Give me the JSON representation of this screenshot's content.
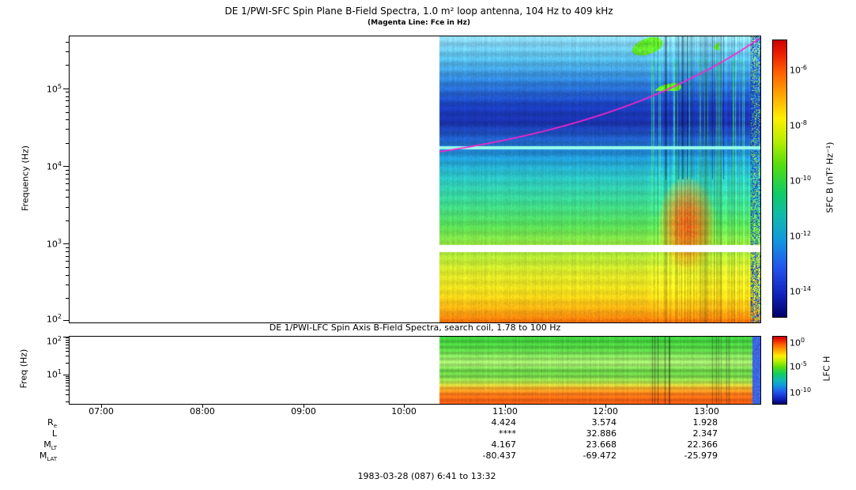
{
  "header": {
    "title": "DE 1/PWI-SFC  Spin Plane B-Field Spectra, 1.0 m² loop antenna, 104 Hz to 409 kHz",
    "subtitle": "(Magenta Line: Fce in Hz)"
  },
  "accent_colors": {
    "magenta_line": "#ff22cc",
    "cyan_line": "#96ffeb"
  },
  "sfc_panel": {
    "ylabel": "Frequency (Hz)",
    "yticks": [
      {
        "base": "10",
        "exp": "5"
      },
      {
        "base": "10",
        "exp": "4"
      },
      {
        "base": "10",
        "exp": "3"
      },
      {
        "base": "10",
        "exp": "2"
      }
    ],
    "colorbar": {
      "label": "SFC B (nT² Hz⁻¹)",
      "ticks": [
        {
          "base": "10",
          "exp": "-6"
        },
        {
          "base": "10",
          "exp": "-8"
        },
        {
          "base": "10",
          "exp": "-10"
        },
        {
          "base": "10",
          "exp": "-12"
        },
        {
          "base": "10",
          "exp": "-14"
        }
      ]
    }
  },
  "lfc_panel": {
    "title": "DE 1/PWI-LFC  Spin Axis B-Field Spectra, search coil, 1.78 to 100 Hz",
    "ylabel": "Freq (Hz)",
    "yticks": [
      {
        "base": "10",
        "exp": "2"
      },
      {
        "base": "10",
        "exp": "1"
      }
    ],
    "colorbar": {
      "label": "LFC H",
      "ticks": [
        {
          "base": "10",
          "exp": "0"
        },
        {
          "base": "10",
          "exp": "-5"
        },
        {
          "base": "10",
          "exp": "-10"
        }
      ]
    }
  },
  "time_axis": {
    "ticks": [
      "07:00",
      "08:00",
      "09:00",
      "10:00",
      "11:00",
      "12:00",
      "13:00"
    ]
  },
  "ephemeris": {
    "rows": [
      {
        "label_main": "R",
        "label_sub": "e",
        "values": [
          "4.424",
          "3.574",
          "1.928"
        ]
      },
      {
        "label_main": "L",
        "label_sub": "",
        "values": [
          "****",
          "32.886",
          "2.347"
        ]
      },
      {
        "label_main": "M",
        "label_sub": "LT",
        "values": [
          "4.167",
          "23.668",
          "22.366"
        ]
      },
      {
        "label_main": "M",
        "label_sub": "LAT",
        "values": [
          "-80.437",
          "-69.472",
          "-25.979"
        ]
      }
    ]
  },
  "footer": {
    "caption": "1983-03-28 (087) 6:41 to 13:32"
  },
  "colormap_stops": [
    {
      "t": 0.0,
      "color": "#cc0000"
    },
    {
      "t": 0.05,
      "color": "#ee2200"
    },
    {
      "t": 0.12,
      "color": "#ff6600"
    },
    {
      "t": 0.2,
      "color": "#ffaa00"
    },
    {
      "t": 0.28,
      "color": "#ffee00"
    },
    {
      "t": 0.36,
      "color": "#bbee00"
    },
    {
      "t": 0.45,
      "color": "#55dd11"
    },
    {
      "t": 0.55,
      "color": "#11cc66"
    },
    {
      "t": 0.63,
      "color": "#11bbaa"
    },
    {
      "t": 0.72,
      "color": "#1199dd"
    },
    {
      "t": 0.82,
      "color": "#2255ee"
    },
    {
      "t": 0.92,
      "color": "#1122bb"
    },
    {
      "t": 1.0,
      "color": "#000066"
    }
  ],
  "chart_data": [
    {
      "type": "heatmap",
      "title": "DE 1/PWI-SFC Spin Plane B-Field Spectra, 1.0 m² loop antenna, 104 Hz to 409 kHz",
      "subtitle": "(Magenta Line: Fce in Hz)",
      "ylabel": "Frequency (Hz)",
      "y_scale": "log",
      "y_range_hz": [
        100,
        480000
      ],
      "x_range_time": [
        "06:41",
        "13:32"
      ],
      "x_ticks": [
        "07:00",
        "08:00",
        "09:00",
        "10:00",
        "11:00",
        "12:00",
        "13:00"
      ],
      "data_start_time": "10:20",
      "data_start_frac": 0.535,
      "colorbar_label": "SFC B (nT² Hz⁻¹)",
      "colorbar_tick_exponents": [
        -6,
        -8,
        -10,
        -12,
        -14
      ],
      "overlays": {
        "fce_line": {
          "color": "#ff22cc",
          "desc": "electron cyclotron frequency, rises from ~15 kHz at 10:20 to >400 kHz near 13:20"
        },
        "cyan_line": {
          "color": "#96ffeb",
          "freq_hz": 18000
        },
        "white_band": {
          "freq_hz_range": [
            810,
            1000
          ]
        }
      },
      "features": [
        "no data (white) before ~10:20",
        "intense yellow-orange band below 1 kHz",
        "green mid band 1-10 kHz",
        "dark blue band 20-70 kHz",
        "light blue above 100 kHz with green emission patches 11:40-13:00",
        "broadband bursty emissions and red enhancement near 12:40-13:10",
        "speckled mixed column at right edge ~13:25"
      ],
      "profile_stops": [
        {
          "t": 0.0,
          "color": "#8fd8f0"
        },
        {
          "t": 0.08,
          "color": "#55bbe8"
        },
        {
          "t": 0.16,
          "color": "#2d7fd8"
        },
        {
          "t": 0.24,
          "color": "#1b3fc0"
        },
        {
          "t": 0.3,
          "color": "#1a30aa"
        },
        {
          "t": 0.36,
          "color": "#2060c8"
        },
        {
          "t": 0.43,
          "color": "#22a0d8"
        },
        {
          "t": 0.5,
          "color": "#2cc8c0"
        },
        {
          "t": 0.58,
          "color": "#3cd890"
        },
        {
          "t": 0.66,
          "color": "#58dd58"
        },
        {
          "t": 0.74,
          "color": "#9fe63c"
        },
        {
          "t": 0.82,
          "color": "#d8e62a"
        },
        {
          "t": 0.9,
          "color": "#f2da1a"
        },
        {
          "t": 0.96,
          "color": "#f8a812"
        },
        {
          "t": 1.0,
          "color": "#ef6a08"
        }
      ]
    },
    {
      "type": "heatmap",
      "title": "DE 1/PWI-LFC Spin Axis B-Field Spectra, search coil, 1.78 to 100 Hz",
      "ylabel": "Freq (Hz)",
      "y_scale": "log",
      "y_range_hz": [
        1.78,
        100
      ],
      "x_range_time": [
        "06:41",
        "13:32"
      ],
      "data_start_frac": 0.535,
      "colorbar_label": "LFC H",
      "colorbar_tick_exponents": [
        0,
        -5,
        -10
      ],
      "features": [
        "no data (white) before ~10:20",
        "banded green spectrum above ~8 Hz",
        "bright orange-red band below ~5 Hz",
        "dark vertical dropouts near 12:40",
        "blue column at right edge ~13:30"
      ],
      "profile_stops": [
        {
          "t": 0.0,
          "color": "#3cc83c"
        },
        {
          "t": 0.18,
          "color": "#55d044"
        },
        {
          "t": 0.3,
          "color": "#8ae060"
        },
        {
          "t": 0.4,
          "color": "#a8e870"
        },
        {
          "t": 0.5,
          "color": "#66cc44"
        },
        {
          "t": 0.6,
          "color": "#7ad24c"
        },
        {
          "t": 0.68,
          "color": "#b8e048"
        },
        {
          "t": 0.76,
          "color": "#f0b028"
        },
        {
          "t": 0.85,
          "color": "#f87818"
        },
        {
          "t": 1.0,
          "color": "#f05510"
        }
      ]
    }
  ]
}
